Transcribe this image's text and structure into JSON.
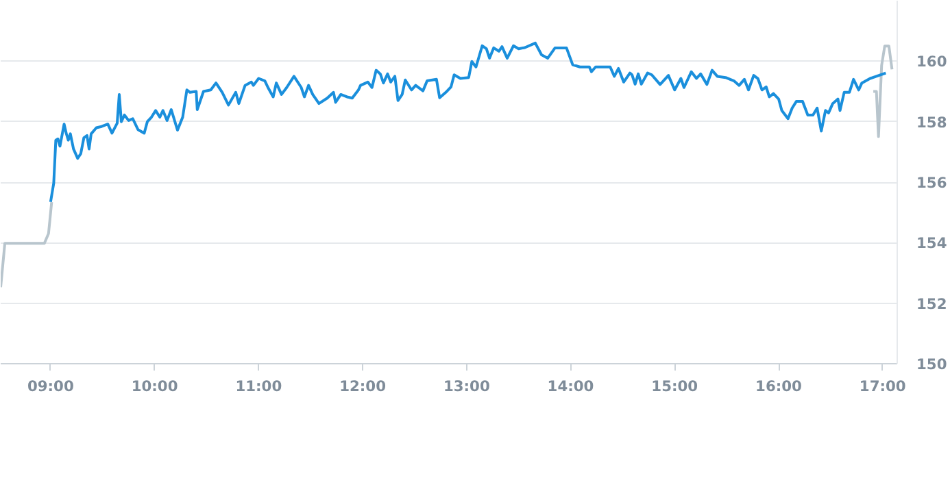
{
  "chart_data": {
    "type": "line",
    "xlim": [
      8.52,
      17.14
    ],
    "ylim": [
      150,
      162
    ],
    "xticks": [
      {
        "value": 9,
        "label": "09:00"
      },
      {
        "value": 10,
        "label": "10:00"
      },
      {
        "value": 11,
        "label": "11:00"
      },
      {
        "value": 12,
        "label": "12:00"
      },
      {
        "value": 13,
        "label": "13:00"
      },
      {
        "value": 14,
        "label": "14:00"
      },
      {
        "value": 15,
        "label": "15:00"
      },
      {
        "value": 16,
        "label": "16:00"
      },
      {
        "value": 17,
        "label": "17:00"
      }
    ],
    "yticks": [
      150,
      152,
      154,
      156,
      158,
      160
    ],
    "grid": "y",
    "series": [
      {
        "color": "#b8c5cd",
        "x": [
          8.52,
          8.56,
          8.94,
          8.98,
          9.01
        ],
        "values": [
          152.53,
          153.98,
          153.98,
          154.3,
          155.34
        ]
      },
      {
        "color": "#b8c5cd",
        "x": [
          16.91,
          16.94,
          16.96,
          16.99,
          17.02,
          17.06,
          17.09
        ],
        "values": [
          159.0,
          159.0,
          157.51,
          159.86,
          160.5,
          160.5,
          159.73
        ]
      },
      {
        "color": "#1a8fdc",
        "x": [
          9.0,
          9.03,
          9.05,
          9.07,
          9.09,
          9.13,
          9.15,
          9.17,
          9.19,
          9.22,
          9.26,
          9.29,
          9.32,
          9.35,
          9.37,
          9.39,
          9.44,
          9.49,
          9.55,
          9.59,
          9.64,
          9.66,
          9.68,
          9.71,
          9.75,
          9.79,
          9.84,
          9.9,
          9.93,
          9.97,
          10.01,
          10.05,
          10.08,
          10.12,
          10.16,
          10.22,
          10.27,
          10.31,
          10.34,
          10.4,
          10.41,
          10.47,
          10.54,
          10.59,
          10.65,
          10.71,
          10.78,
          10.81,
          10.87,
          10.93,
          10.95,
          11.0,
          11.06,
          11.09,
          11.14,
          11.17,
          11.22,
          11.27,
          11.34,
          11.41,
          11.44,
          11.48,
          11.52,
          11.58,
          11.66,
          11.72,
          11.74,
          11.79,
          11.85,
          11.9,
          11.96,
          11.98,
          12.05,
          12.09,
          12.13,
          12.17,
          12.2,
          12.24,
          12.27,
          12.31,
          12.34,
          12.38,
          12.41,
          12.47,
          12.51,
          12.58,
          12.62,
          12.71,
          12.74,
          12.8,
          12.85,
          12.88,
          12.94,
          13.02,
          13.05,
          13.09,
          13.15,
          13.19,
          13.22,
          13.26,
          13.31,
          13.34,
          13.39,
          13.45,
          13.5,
          13.56,
          13.66,
          13.72,
          13.78,
          13.85,
          13.96,
          14.02,
          14.09,
          14.18,
          14.2,
          14.24,
          14.38,
          14.42,
          14.46,
          14.51,
          14.57,
          14.59,
          14.62,
          14.65,
          14.68,
          14.74,
          14.78,
          14.86,
          14.94,
          15.0,
          15.06,
          15.09,
          15.16,
          15.21,
          15.25,
          15.31,
          15.36,
          15.41,
          15.49,
          15.57,
          15.62,
          15.67,
          15.71,
          15.76,
          15.8,
          15.84,
          15.88,
          15.91,
          15.95,
          16.0,
          16.03,
          16.09,
          16.13,
          16.17,
          16.23,
          16.28,
          16.33,
          16.37,
          16.41,
          16.45,
          16.48,
          16.52,
          16.57,
          16.59,
          16.63,
          16.68,
          16.72,
          16.77,
          16.8,
          16.88,
          16.94,
          17.03
        ],
        "values": [
          155.35,
          155.97,
          157.39,
          157.43,
          157.19,
          157.92,
          157.62,
          157.39,
          157.6,
          157.1,
          156.79,
          156.94,
          157.47,
          157.54,
          157.1,
          157.6,
          157.8,
          157.84,
          157.92,
          157.62,
          157.95,
          158.9,
          158.0,
          158.22,
          158.04,
          158.1,
          157.74,
          157.62,
          158.0,
          158.15,
          158.37,
          158.15,
          158.37,
          158.04,
          158.4,
          157.72,
          158.15,
          159.05,
          158.97,
          159.0,
          158.4,
          159.0,
          159.05,
          159.28,
          158.97,
          158.55,
          158.97,
          158.6,
          159.2,
          159.31,
          159.2,
          159.43,
          159.35,
          159.13,
          158.82,
          159.28,
          158.9,
          159.13,
          159.5,
          159.13,
          158.82,
          159.2,
          158.9,
          158.6,
          158.78,
          158.97,
          158.64,
          158.9,
          158.82,
          158.78,
          159.05,
          159.2,
          159.31,
          159.13,
          159.7,
          159.58,
          159.28,
          159.58,
          159.31,
          159.5,
          158.7,
          158.9,
          159.38,
          159.05,
          159.2,
          159.02,
          159.35,
          159.4,
          158.79,
          158.97,
          159.15,
          159.55,
          159.43,
          159.46,
          159.99,
          159.81,
          160.51,
          160.41,
          160.1,
          160.44,
          160.33,
          160.48,
          160.1,
          160.51,
          160.41,
          160.45,
          160.6,
          160.21,
          160.1,
          160.44,
          160.44,
          159.88,
          159.81,
          159.81,
          159.65,
          159.81,
          159.81,
          159.5,
          159.76,
          159.31,
          159.61,
          159.55,
          159.24,
          159.58,
          159.24,
          159.61,
          159.55,
          159.23,
          159.53,
          159.05,
          159.43,
          159.13,
          159.65,
          159.43,
          159.58,
          159.23,
          159.7,
          159.5,
          159.46,
          159.35,
          159.2,
          159.4,
          159.05,
          159.53,
          159.43,
          159.05,
          159.15,
          158.82,
          158.93,
          158.75,
          158.37,
          158.1,
          158.45,
          158.67,
          158.67,
          158.22,
          158.22,
          158.45,
          157.69,
          158.37,
          158.29,
          158.6,
          158.75,
          158.37,
          158.97,
          158.97,
          159.4,
          159.05,
          159.28,
          159.43,
          159.5,
          159.61
        ]
      }
    ]
  }
}
